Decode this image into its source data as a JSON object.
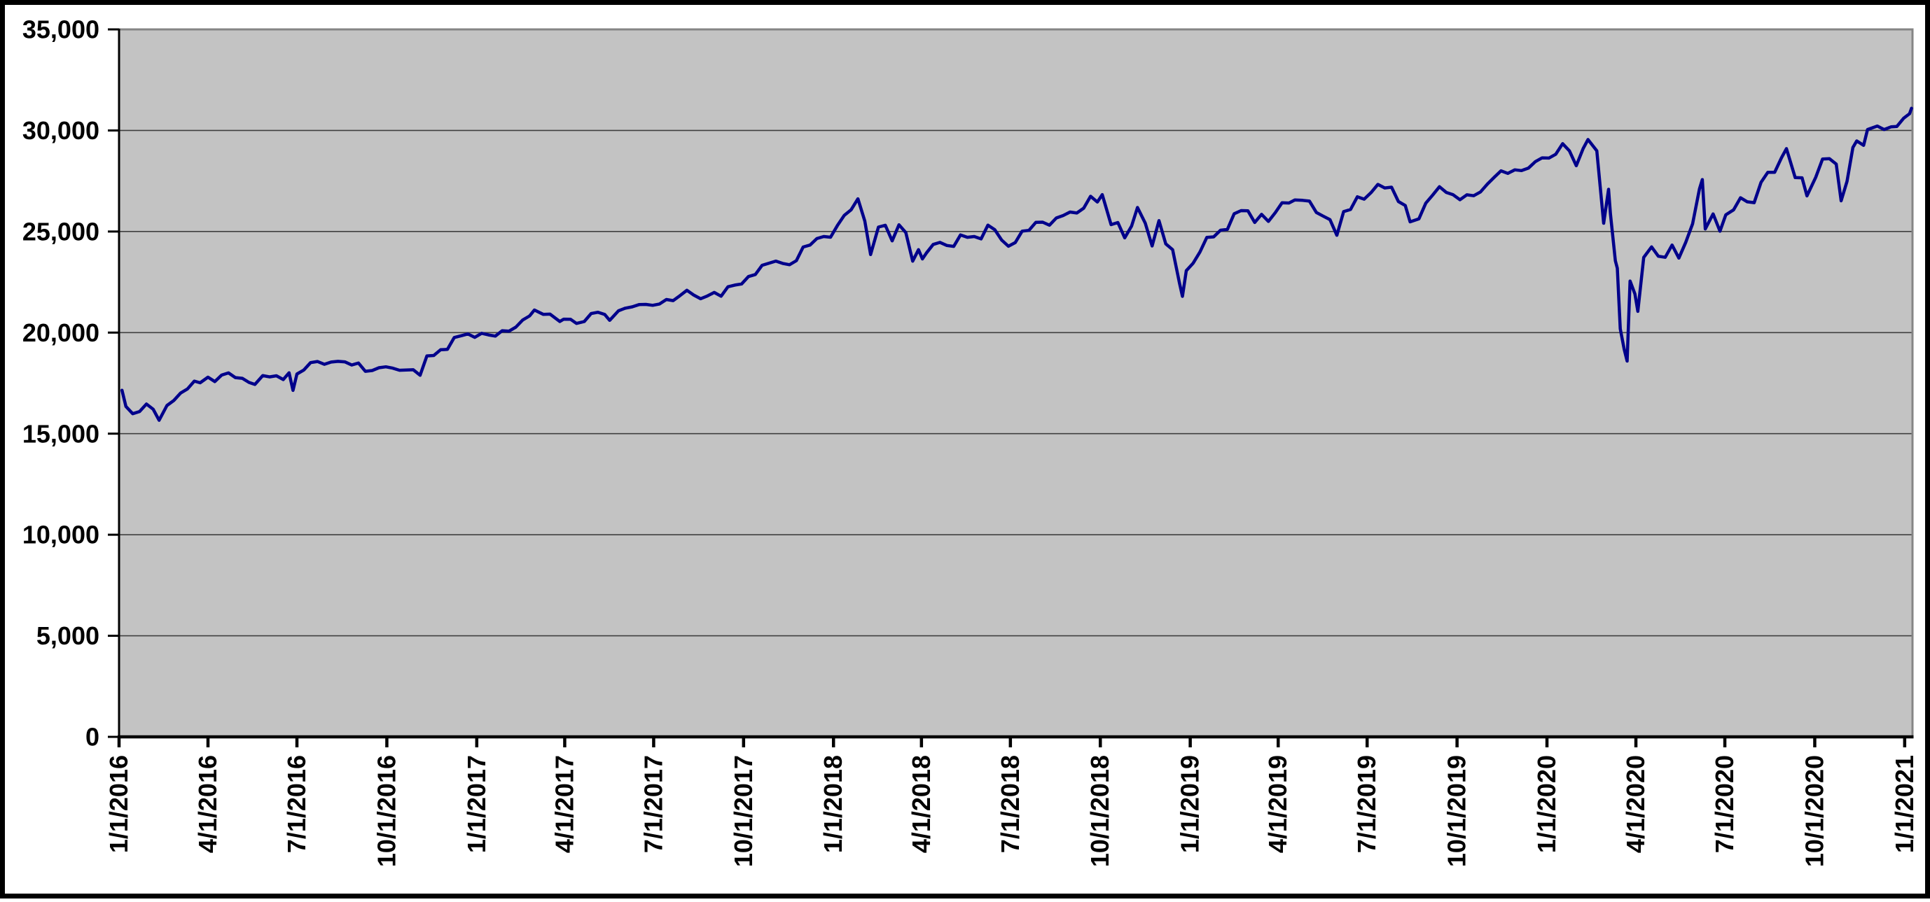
{
  "chart_data": {
    "type": "line",
    "title": "",
    "xlabel": "",
    "ylabel": "",
    "legend": "none",
    "grid": "horizontal",
    "ylim": [
      0,
      35000
    ],
    "xlim": [
      "1/1/2016",
      "1/9/2021"
    ],
    "colors": {
      "line": "#00008B",
      "plot_bg": "#C3C3C3",
      "plot_border": "#858585",
      "gridline": "#3F3F3F",
      "axis": "#000000",
      "text": "#000000",
      "frame": "#000000",
      "page_bg": "#FFFFFF"
    },
    "y_ticks": [
      {
        "value": 0,
        "label": "0"
      },
      {
        "value": 5000,
        "label": "5,000"
      },
      {
        "value": 10000,
        "label": "10,000"
      },
      {
        "value": 15000,
        "label": "15,000"
      },
      {
        "value": 20000,
        "label": "20,000"
      },
      {
        "value": 25000,
        "label": "25,000"
      },
      {
        "value": 30000,
        "label": "30,000"
      },
      {
        "value": 35000,
        "label": "35,000"
      }
    ],
    "x_tick_labels": [
      "1/1/2016",
      "4/1/2016",
      "7/1/2016",
      "10/1/2016",
      "1/1/2017",
      "4/1/2017",
      "7/1/2017",
      "10/1/2017",
      "1/1/2018",
      "4/1/2018",
      "7/1/2018",
      "10/1/2018",
      "1/1/2019",
      "4/1/2019",
      "7/1/2019",
      "10/1/2019",
      "1/1/2020",
      "4/1/2020",
      "7/1/2020",
      "10/1/2020",
      "1/1/2021"
    ],
    "points": [
      [
        "1/4/2016",
        17148
      ],
      [
        "1/8/2016",
        16346
      ],
      [
        "1/15/2016",
        15988
      ],
      [
        "1/22/2016",
        16094
      ],
      [
        "1/29/2016",
        16466
      ],
      [
        "2/5/2016",
        16205
      ],
      [
        "2/11/2016",
        15660
      ],
      [
        "2/19/2016",
        16392
      ],
      [
        "2/26/2016",
        16640
      ],
      [
        "3/4/2016",
        17007
      ],
      [
        "3/11/2016",
        17213
      ],
      [
        "3/18/2016",
        17602
      ],
      [
        "3/24/2016",
        17516
      ],
      [
        "4/1/2016",
        17793
      ],
      [
        "4/8/2016",
        17577
      ],
      [
        "4/15/2016",
        17897
      ],
      [
        "4/22/2016",
        18004
      ],
      [
        "4/29/2016",
        17774
      ],
      [
        "5/6/2016",
        17740
      ],
      [
        "5/13/2016",
        17535
      ],
      [
        "5/19/2016",
        17435
      ],
      [
        "5/27/2016",
        17873
      ],
      [
        "6/3/2016",
        17807
      ],
      [
        "6/10/2016",
        17865
      ],
      [
        "6/17/2016",
        17675
      ],
      [
        "6/23/2016",
        18011
      ],
      [
        "6/27/2016",
        17140
      ],
      [
        "7/1/2016",
        17949
      ],
      [
        "7/8/2016",
        18147
      ],
      [
        "7/15/2016",
        18516
      ],
      [
        "7/22/2016",
        18571
      ],
      [
        "7/29/2016",
        18432
      ],
      [
        "8/5/2016",
        18543
      ],
      [
        "8/12/2016",
        18576
      ],
      [
        "8/19/2016",
        18552
      ],
      [
        "8/26/2016",
        18395
      ],
      [
        "9/2/2016",
        18492
      ],
      [
        "9/9/2016",
        18085
      ],
      [
        "9/16/2016",
        18123
      ],
      [
        "9/23/2016",
        18261
      ],
      [
        "9/30/2016",
        18308
      ],
      [
        "10/7/2016",
        18240
      ],
      [
        "10/14/2016",
        18138
      ],
      [
        "10/21/2016",
        18146
      ],
      [
        "10/28/2016",
        18161
      ],
      [
        "11/4/2016",
        17888
      ],
      [
        "11/11/2016",
        18848
      ],
      [
        "11/18/2016",
        18868
      ],
      [
        "11/25/2016",
        19152
      ],
      [
        "12/2/2016",
        19170
      ],
      [
        "12/9/2016",
        19757
      ],
      [
        "12/16/2016",
        19843
      ],
      [
        "12/23/2016",
        19934
      ],
      [
        "12/30/2016",
        19763
      ],
      [
        "1/6/2017",
        19964
      ],
      [
        "1/13/2017",
        19886
      ],
      [
        "1/20/2017",
        19827
      ],
      [
        "1/27/2017",
        20094
      ],
      [
        "2/3/2017",
        20071
      ],
      [
        "2/10/2017",
        20269
      ],
      [
        "2/17/2017",
        20624
      ],
      [
        "2/24/2017",
        20822
      ],
      [
        "3/1/2017",
        21116
      ],
      [
        "3/10/2017",
        20903
      ],
      [
        "3/17/2017",
        20915
      ],
      [
        "3/27/2017",
        20550
      ],
      [
        "3/31/2017",
        20663
      ],
      [
        "4/7/2017",
        20656
      ],
      [
        "4/13/2017",
        20453
      ],
      [
        "4/21/2017",
        20548
      ],
      [
        "4/28/2017",
        20941
      ],
      [
        "5/5/2017",
        21007
      ],
      [
        "5/12/2017",
        20897
      ],
      [
        "5/17/2017",
        20607
      ],
      [
        "5/26/2017",
        21080
      ],
      [
        "6/2/2017",
        21206
      ],
      [
        "6/9/2017",
        21272
      ],
      [
        "6/16/2017",
        21384
      ],
      [
        "6/23/2017",
        21395
      ],
      [
        "6/30/2017",
        21350
      ],
      [
        "7/7/2017",
        21414
      ],
      [
        "7/14/2017",
        21638
      ],
      [
        "7/21/2017",
        21580
      ],
      [
        "7/28/2017",
        21830
      ],
      [
        "8/4/2017",
        22093
      ],
      [
        "8/11/2017",
        21858
      ],
      [
        "8/18/2017",
        21675
      ],
      [
        "8/25/2017",
        21814
      ],
      [
        "9/1/2017",
        21988
      ],
      [
        "9/8/2017",
        21798
      ],
      [
        "9/15/2017",
        22268
      ],
      [
        "9/22/2017",
        22350
      ],
      [
        "9/29/2017",
        22405
      ],
      [
        "10/6/2017",
        22774
      ],
      [
        "10/13/2017",
        22872
      ],
      [
        "10/20/2017",
        23329
      ],
      [
        "10/27/2017",
        23434
      ],
      [
        "11/3/2017",
        23539
      ],
      [
        "11/10/2017",
        23422
      ],
      [
        "11/17/2017",
        23358
      ],
      [
        "11/24/2017",
        23558
      ],
      [
        "12/1/2017",
        24232
      ],
      [
        "12/8/2017",
        24329
      ],
      [
        "12/15/2017",
        24652
      ],
      [
        "12/22/2017",
        24754
      ],
      [
        "12/29/2017",
        24719
      ],
      [
        "1/5/2018",
        25296
      ],
      [
        "1/12/2018",
        25803
      ],
      [
        "1/19/2018",
        26072
      ],
      [
        "1/26/2018",
        26617
      ],
      [
        "2/2/2018",
        25521
      ],
      [
        "2/8/2018",
        23860
      ],
      [
        "2/16/2018",
        25219
      ],
      [
        "2/23/2018",
        25310
      ],
      [
        "3/2/2018",
        24538
      ],
      [
        "3/9/2018",
        25336
      ],
      [
        "3/16/2018",
        24947
      ],
      [
        "3/23/2018",
        23533
      ],
      [
        "3/29/2018",
        24103
      ],
      [
        "4/2/2018",
        23644
      ],
      [
        "4/6/2018",
        23933
      ],
      [
        "4/13/2018",
        24360
      ],
      [
        "4/20/2018",
        24463
      ],
      [
        "4/27/2018",
        24311
      ],
      [
        "5/4/2018",
        24263
      ],
      [
        "5/11/2018",
        24831
      ],
      [
        "5/18/2018",
        24715
      ],
      [
        "5/25/2018",
        24753
      ],
      [
        "6/1/2018",
        24635
      ],
      [
        "6/8/2018",
        25317
      ],
      [
        "6/15/2018",
        25090
      ],
      [
        "6/22/2018",
        24581
      ],
      [
        "6/29/2018",
        24271
      ],
      [
        "7/6/2018",
        24456
      ],
      [
        "7/13/2018",
        25019
      ],
      [
        "7/20/2018",
        25058
      ],
      [
        "7/27/2018",
        25451
      ],
      [
        "8/3/2018",
        25463
      ],
      [
        "8/10/2018",
        25313
      ],
      [
        "8/17/2018",
        25669
      ],
      [
        "8/24/2018",
        25790
      ],
      [
        "8/31/2018",
        25965
      ],
      [
        "9/7/2018",
        25917
      ],
      [
        "9/14/2018",
        26155
      ],
      [
        "9/21/2018",
        26743
      ],
      [
        "9/28/2018",
        26458
      ],
      [
        "10/3/2018",
        26828
      ],
      [
        "10/12/2018",
        25340
      ],
      [
        "10/19/2018",
        25444
      ],
      [
        "10/26/2018",
        24688
      ],
      [
        "11/2/2018",
        25271
      ],
      [
        "11/8/2018",
        26191
      ],
      [
        "11/16/2018",
        25413
      ],
      [
        "11/23/2018",
        24286
      ],
      [
        "11/30/2018",
        25538
      ],
      [
        "12/7/2018",
        24389
      ],
      [
        "12/14/2018",
        24101
      ],
      [
        "12/21/2018",
        22445
      ],
      [
        "12/24/2018",
        21792
      ],
      [
        "12/28/2018",
        23062
      ],
      [
        "1/4/2019",
        23433
      ],
      [
        "1/11/2019",
        23996
      ],
      [
        "1/18/2019",
        24706
      ],
      [
        "1/25/2019",
        24737
      ],
      [
        "2/1/2019",
        25064
      ],
      [
        "2/8/2019",
        25106
      ],
      [
        "2/15/2019",
        25883
      ],
      [
        "2/22/2019",
        26032
      ],
      [
        "3/1/2019",
        26026
      ],
      [
        "3/8/2019",
        25450
      ],
      [
        "3/15/2019",
        25849
      ],
      [
        "3/22/2019",
        25502
      ],
      [
        "3/29/2019",
        25929
      ],
      [
        "4/5/2019",
        26425
      ],
      [
        "4/12/2019",
        26412
      ],
      [
        "4/18/2019",
        26560
      ],
      [
        "4/26/2019",
        26543
      ],
      [
        "5/3/2019",
        26505
      ],
      [
        "5/10/2019",
        25942
      ],
      [
        "5/17/2019",
        25764
      ],
      [
        "5/24/2019",
        25586
      ],
      [
        "5/31/2019",
        24815
      ],
      [
        "6/7/2019",
        25984
      ],
      [
        "6/14/2019",
        26090
      ],
      [
        "6/21/2019",
        26719
      ],
      [
        "6/28/2019",
        26600
      ],
      [
        "7/5/2019",
        26922
      ],
      [
        "7/12/2019",
        27332
      ],
      [
        "7/19/2019",
        27154
      ],
      [
        "7/26/2019",
        27192
      ],
      [
        "8/2/2019",
        26485
      ],
      [
        "8/9/2019",
        26287
      ],
      [
        "8/14/2019",
        25479
      ],
      [
        "8/23/2019",
        25629
      ],
      [
        "8/30/2019",
        26403
      ],
      [
        "9/6/2019",
        26797
      ],
      [
        "9/13/2019",
        27219
      ],
      [
        "9/20/2019",
        26935
      ],
      [
        "9/27/2019",
        26820
      ],
      [
        "10/4/2019",
        26574
      ],
      [
        "10/11/2019",
        26817
      ],
      [
        "10/18/2019",
        26770
      ],
      [
        "10/25/2019",
        26958
      ],
      [
        "11/1/2019",
        27347
      ],
      [
        "11/8/2019",
        27681
      ],
      [
        "11/15/2019",
        28005
      ],
      [
        "11/22/2019",
        27875
      ],
      [
        "11/29/2019",
        28051
      ],
      [
        "12/6/2019",
        28015
      ],
      [
        "12/13/2019",
        28135
      ],
      [
        "12/20/2019",
        28455
      ],
      [
        "12/27/2019",
        28645
      ],
      [
        "1/3/2020",
        28635
      ],
      [
        "1/10/2020",
        28824
      ],
      [
        "1/17/2020",
        29348
      ],
      [
        "1/24/2020",
        28990
      ],
      [
        "1/31/2020",
        28256
      ],
      [
        "2/7/2020",
        29103
      ],
      [
        "2/12/2020",
        29551
      ],
      [
        "2/21/2020",
        28992
      ],
      [
        "2/28/2020",
        25409
      ],
      [
        "3/4/2020",
        27091
      ],
      [
        "3/6/2020",
        25865
      ],
      [
        "3/11/2020",
        23553
      ],
      [
        "3/13/2020",
        23186
      ],
      [
        "3/16/2020",
        20188
      ],
      [
        "3/20/2020",
        19174
      ],
      [
        "3/23/2020",
        18592
      ],
      [
        "3/26/2020",
        22552
      ],
      [
        "3/31/2020",
        21917
      ],
      [
        "4/3/2020",
        21053
      ],
      [
        "4/9/2020",
        23719
      ],
      [
        "4/17/2020",
        24242
      ],
      [
        "4/24/2020",
        23775
      ],
      [
        "5/1/2020",
        23724
      ],
      [
        "5/8/2020",
        24331
      ],
      [
        "5/15/2020",
        23685
      ],
      [
        "5/22/2020",
        24465
      ],
      [
        "5/29/2020",
        25383
      ],
      [
        "6/5/2020",
        27111
      ],
      [
        "6/8/2020",
        27572
      ],
      [
        "6/11/2020",
        25128
      ],
      [
        "6/19/2020",
        25871
      ],
      [
        "6/26/2020",
        25016
      ],
      [
        "7/2/2020",
        25827
      ],
      [
        "7/10/2020",
        26075
      ],
      [
        "7/17/2020",
        26672
      ],
      [
        "7/24/2020",
        26470
      ],
      [
        "7/31/2020",
        26428
      ],
      [
        "8/7/2020",
        27433
      ],
      [
        "8/14/2020",
        27931
      ],
      [
        "8/21/2020",
        27930
      ],
      [
        "8/28/2020",
        28654
      ],
      [
        "9/2/2020",
        29100
      ],
      [
        "9/11/2020",
        27666
      ],
      [
        "9/18/2020",
        27657
      ],
      [
        "9/23/2020",
        26763
      ],
      [
        "10/2/2020",
        27683
      ],
      [
        "10/9/2020",
        28587
      ],
      [
        "10/16/2020",
        28606
      ],
      [
        "10/23/2020",
        28336
      ],
      [
        "10/28/2020",
        26520
      ],
      [
        "11/3/2020",
        27480
      ],
      [
        "11/9/2020",
        29158
      ],
      [
        "11/13/2020",
        29480
      ],
      [
        "11/20/2020",
        29263
      ],
      [
        "11/24/2020",
        30046
      ],
      [
        "12/4/2020",
        30218
      ],
      [
        "12/11/2020",
        30046
      ],
      [
        "12/18/2020",
        30179
      ],
      [
        "12/24/2020",
        30200
      ],
      [
        "12/31/2020",
        30606
      ],
      [
        "1/6/2021",
        30829
      ],
      [
        "1/8/2021",
        31098
      ]
    ]
  }
}
